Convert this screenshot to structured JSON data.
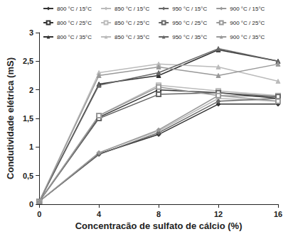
{
  "chart_data": {
    "type": "line",
    "xlabel": "Concentracão de sulfato de cálcio (%)",
    "ylabel": "Condutividade elétrica (mS)",
    "x": [
      0,
      4,
      8,
      12,
      16
    ],
    "xlim": [
      0,
      16
    ],
    "xticks": [
      0,
      4,
      8,
      12,
      16
    ],
    "ylim": [
      0,
      3
    ],
    "yticks": [
      0,
      {
        "value": 0.5,
        "label": "0,5"
      },
      1,
      {
        "value": 1.5,
        "label": "1,5"
      },
      2,
      {
        "value": 2.5,
        "label": "2,5"
      },
      3
    ],
    "grid": false,
    "legend": "top",
    "series": [
      {
        "name": "800 °C / 15°C",
        "color": "#333333",
        "marker": "diamond",
        "values": [
          0.05,
          0.88,
          1.22,
          1.75,
          1.75
        ]
      },
      {
        "name": "850 °C / 15°C",
        "color": "#bbbbbb",
        "marker": "diamond",
        "values": [
          0.05,
          0.9,
          1.28,
          1.85,
          1.8
        ]
      },
      {
        "name": "950 °C / 15°C",
        "color": "#666666",
        "marker": "diamond",
        "values": [
          0.05,
          0.87,
          1.25,
          1.8,
          1.85
        ]
      },
      {
        "name": "900 °C / 15°C",
        "color": "#999999",
        "marker": "diamond",
        "values": [
          0.05,
          0.9,
          1.3,
          1.9,
          1.88
        ]
      },
      {
        "name": "800 °C / 25°C",
        "color": "#333333",
        "marker": "open_square",
        "values": [
          0.05,
          1.52,
          2.0,
          1.95,
          1.85
        ]
      },
      {
        "name": "850 °C / 25°C",
        "color": "#bbbbbb",
        "marker": "open_square",
        "values": [
          0.05,
          1.55,
          2.08,
          1.98,
          1.9
        ]
      },
      {
        "name": "950 °C / 25°C",
        "color": "#666666",
        "marker": "open_square",
        "values": [
          0.05,
          1.5,
          1.92,
          1.95,
          1.88
        ]
      },
      {
        "name": "900 °C / 25°C",
        "color": "#999999",
        "marker": "open_square",
        "values": [
          0.05,
          1.55,
          2.05,
          1.9,
          1.8
        ]
      },
      {
        "name": "800 °C / 35°C",
        "color": "#333333",
        "marker": "triangle",
        "values": [
          0.05,
          2.1,
          2.25,
          2.7,
          2.5
        ]
      },
      {
        "name": "850 °C / 35°C",
        "color": "#bbbbbb",
        "marker": "triangle",
        "values": [
          0.05,
          2.3,
          2.45,
          2.4,
          2.15
        ]
      },
      {
        "name": "950 °C / 35°C",
        "color": "#666666",
        "marker": "triangle",
        "values": [
          0.05,
          2.08,
          2.3,
          2.72,
          2.5
        ]
      },
      {
        "name": "900 °C / 35°C",
        "color": "#999999",
        "marker": "triangle",
        "values": [
          0.05,
          2.25,
          2.4,
          2.25,
          2.45
        ]
      }
    ]
  }
}
